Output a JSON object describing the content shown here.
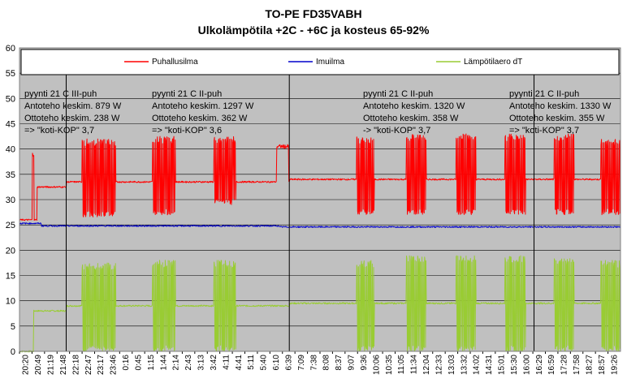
{
  "chart_data": {
    "type": "line",
    "title": "TO-PE FD35VABH",
    "subtitle": "Ulkolämpötila +2C - +6C ja kosteus 65-92%",
    "ylim": [
      0,
      60
    ],
    "yticks": [
      0,
      5,
      10,
      15,
      20,
      25,
      30,
      35,
      40,
      45,
      50,
      55,
      60
    ],
    "xlim": [
      0,
      1390
    ],
    "categories": [
      "20:20",
      "20:49",
      "21:19",
      "21:48",
      "22:18",
      "22:47",
      "23:17",
      "23:46",
      "0:16",
      "0:45",
      "1:15",
      "1:44",
      "2:14",
      "2:43",
      "3:13",
      "3:42",
      "4:11",
      "4:41",
      "5:11",
      "5:40",
      "6:10",
      "6:39",
      "7:09",
      "7:38",
      "8:08",
      "8:37",
      "9:07",
      "9:36",
      "10:06",
      "10:35",
      "11:05",
      "11:34",
      "12:04",
      "12:33",
      "13:03",
      "13:32",
      "14:02",
      "14:31",
      "15:01",
      "15:30",
      "16:00",
      "16:29",
      "16:59",
      "17:28",
      "17:58",
      "18:27",
      "18:57",
      "19:26"
    ],
    "grid": true,
    "legend": {
      "position": "top",
      "entries": [
        {
          "name": "Puhallusilma",
          "color": "#ff0000"
        },
        {
          "name": "Imuilma",
          "color": "#0000cc"
        },
        {
          "name": "Lämpötilaero dT",
          "color": "#99cc33"
        }
      ]
    },
    "dividers_minutes": [
      108,
      624,
      1190
    ],
    "series": [
      {
        "name": "Puhallusilma",
        "color": "#ff0000",
        "baseline_segments": [
          {
            "start": 0,
            "end": 40,
            "value": 26
          },
          {
            "start": 40,
            "end": 108,
            "value": 32.5
          },
          {
            "start": 108,
            "end": 624,
            "value": 33.5
          },
          {
            "start": 624,
            "end": 1390,
            "value": 34
          }
        ],
        "cycle_segments": [
          {
            "start": 30,
            "end": 33,
            "value": 39
          },
          {
            "start": 595,
            "end": 622,
            "value": 40.5
          }
        ],
        "burst_segments": [
          {
            "start": 145,
            "end": 222,
            "low": 26.5,
            "high": 42
          },
          {
            "start": 308,
            "end": 360,
            "low": 27,
            "high": 42.5
          },
          {
            "start": 450,
            "end": 500,
            "low": 29,
            "high": 42.5
          },
          {
            "start": 780,
            "end": 820,
            "low": 27,
            "high": 42.5
          },
          {
            "start": 895,
            "end": 940,
            "low": 27,
            "high": 43
          },
          {
            "start": 1010,
            "end": 1055,
            "low": 27,
            "high": 43
          },
          {
            "start": 1123,
            "end": 1170,
            "low": 27,
            "high": 43
          },
          {
            "start": 1237,
            "end": 1282,
            "low": 27,
            "high": 43
          },
          {
            "start": 1345,
            "end": 1390,
            "low": 27,
            "high": 42
          }
        ]
      },
      {
        "name": "Imuilma",
        "color": "#0000cc",
        "baseline_segments": [
          {
            "start": 0,
            "end": 50,
            "value": 25.3
          },
          {
            "start": 50,
            "end": 600,
            "value": 24.8
          },
          {
            "start": 600,
            "end": 1390,
            "value": 24.6
          }
        ]
      },
      {
        "name": "Lämpötilaero dT",
        "color": "#99cc33",
        "baseline_segments": [
          {
            "start": 0,
            "end": 32,
            "value": 0
          },
          {
            "start": 32,
            "end": 108,
            "value": 8
          },
          {
            "start": 108,
            "end": 624,
            "value": 9
          },
          {
            "start": 624,
            "end": 1390,
            "value": 9.5
          }
        ],
        "burst_segments": [
          {
            "start": 145,
            "end": 222,
            "low": 0,
            "high": 17.5
          },
          {
            "start": 308,
            "end": 360,
            "low": 0,
            "high": 18
          },
          {
            "start": 450,
            "end": 500,
            "low": 0,
            "high": 18
          },
          {
            "start": 780,
            "end": 820,
            "low": 0,
            "high": 18
          },
          {
            "start": 895,
            "end": 940,
            "low": 0,
            "high": 19
          },
          {
            "start": 1010,
            "end": 1055,
            "low": 0,
            "high": 19
          },
          {
            "start": 1123,
            "end": 1170,
            "low": 0,
            "high": 19
          },
          {
            "start": 1237,
            "end": 1282,
            "low": 0,
            "high": 18.5
          },
          {
            "start": 1345,
            "end": 1390,
            "low": 0,
            "high": 18
          }
        ]
      }
    ],
    "annotations": [
      {
        "lines": [
          "pyynti 21 C III-puh",
          "Antoteho keskim. 879 W",
          "Ottoteho keskim. 238 W",
          "=> \"koti-KOP\" 3,7"
        ],
        "anchor": "top-left"
      },
      {
        "lines": [
          "pyynti 21 C II-puh",
          "Antoteho keskim. 1297 W",
          "Ottoteho keskim. 362 W",
          "=> \"koti-KOP\" 3,6"
        ],
        "anchor": "top-left"
      },
      {
        "lines": [
          "pyynti 21 C II-puh",
          "Antoteho keskim. 1320 W",
          "Ottoteho keskim. 358 W",
          "-> \"koti-KOP\" 3,7"
        ],
        "anchor": "top-center"
      },
      {
        "lines": [
          "pyynti 21 C II-puh",
          "Antoteho keskim. 1330 W",
          "Ottoteho keskim. 355 W",
          "=> \"koti-KOP\" 3,7"
        ],
        "anchor": "top-right"
      }
    ]
  }
}
